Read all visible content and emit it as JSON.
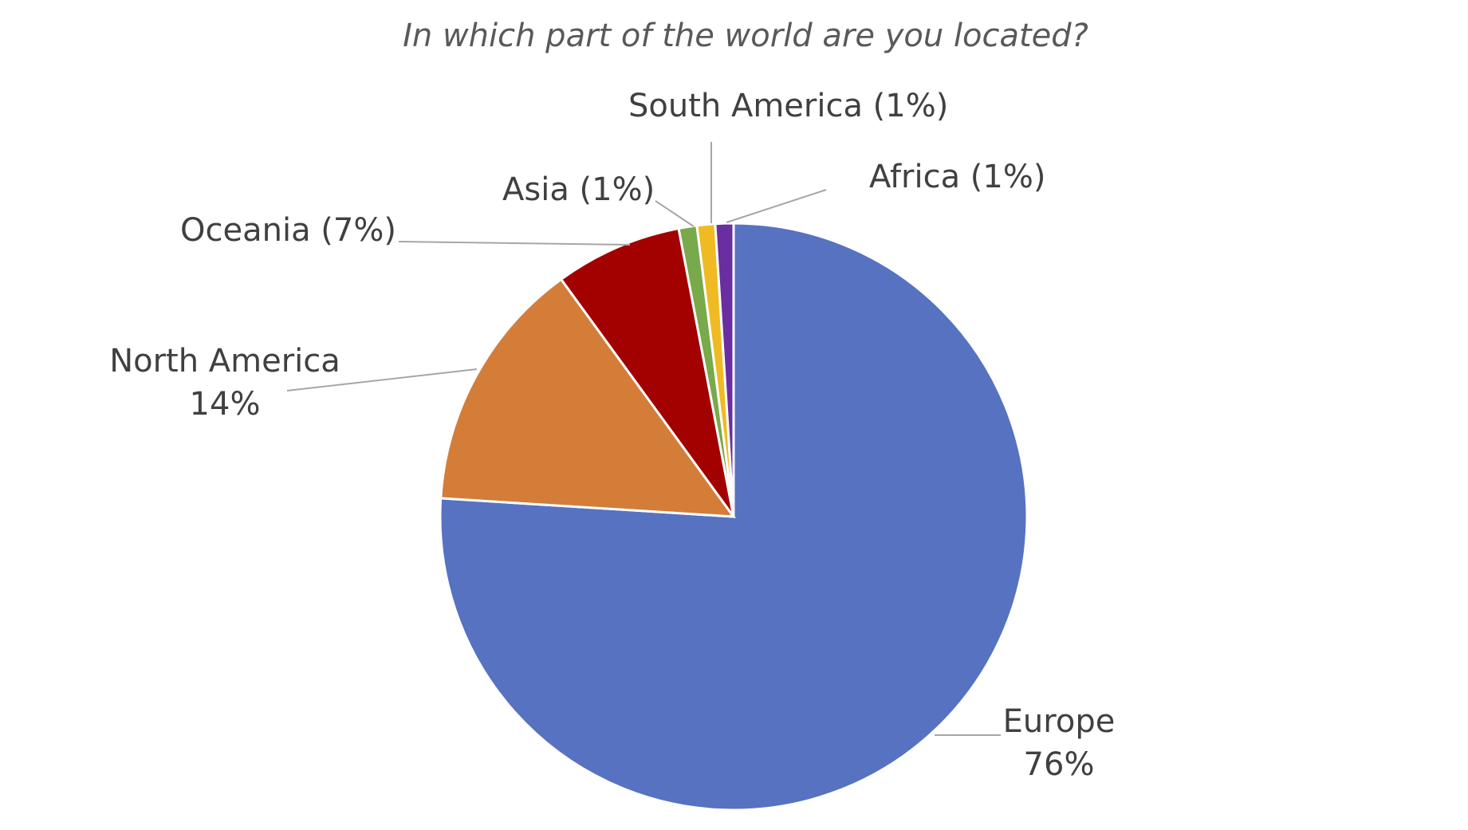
{
  "chart_data": {
    "type": "pie",
    "title": "In which part of the world are you located?",
    "slices": [
      {
        "name": "Europe",
        "value": 76,
        "label_lines": [
          "Europe",
          "76%"
        ],
        "color": "#5672C1"
      },
      {
        "name": "North America",
        "value": 14,
        "label_lines": [
          "North America",
          "14%"
        ],
        "color": "#D47D39"
      },
      {
        "name": "Oceania",
        "value": 7,
        "label_lines": [
          "Oceania (7%)"
        ],
        "color": "#A30000"
      },
      {
        "name": "Asia",
        "value": 1,
        "label_lines": [
          "Asia (1%)"
        ],
        "color": "#78A94A"
      },
      {
        "name": "South America",
        "value": 1,
        "label_lines": [
          "South America (1%)"
        ],
        "color": "#F0BA22"
      },
      {
        "name": "Africa",
        "value": 1,
        "label_lines": [
          "Africa (1%)"
        ],
        "color": "#6A2EA0"
      }
    ],
    "start_angle_deg": 0,
    "direction": "clockwise",
    "legend": "none"
  }
}
